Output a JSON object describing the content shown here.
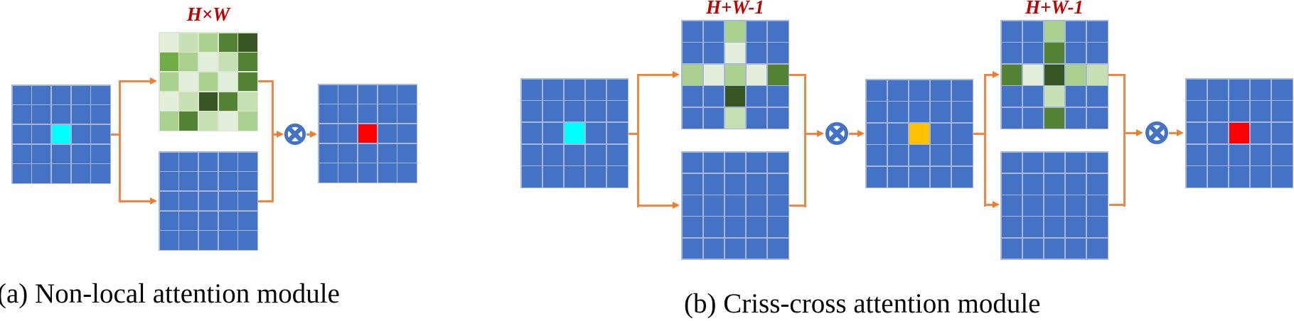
{
  "figure": {
    "panel_a": {
      "caption": "(a) Non-local attention module",
      "attention_map_label": "H×W"
    },
    "panel_b": {
      "caption": "(b) Criss-cross attention module",
      "attention_map_label_1": "H+W-1",
      "attention_map_label_2": "H+W-1"
    }
  },
  "colors": {
    "feature_map_blue": "#4472C4",
    "grid_line_blue": "#A6B7DB",
    "grid_line_green": "#DCE6D0",
    "query_position_cyan": "#00FFFF",
    "output_position_red": "#FF0000",
    "intermediate_position_orange": "#FFC000",
    "arrow_orange": "#ED8746",
    "arrowhead_orange": "#ED7D31",
    "label_dark_red": "#C00000",
    "multiply_operator_blue": "#4472C4",
    "green_scale_low_to_high": [
      "#E2EFDA",
      "#C6E0B4",
      "#A9D08E",
      "#70AD47",
      "#548235",
      "#375623"
    ]
  },
  "icons": {
    "multiply_operator": "circled-times ⊗"
  },
  "palette": {
    "B": "#4472C4",
    "C": "#00FFFF",
    "R": "#FF0000",
    "O": "#FFC000",
    "g0": "#E2EFDA",
    "g1": "#C6E0B4",
    "g2": "#A9D08E",
    "g3": "#70AD47",
    "g4": "#548235",
    "g5": "#375623"
  },
  "grids": {
    "a_input": [
      [
        "B",
        "B",
        "B",
        "B",
        "B"
      ],
      [
        "B",
        "B",
        "B",
        "B",
        "B"
      ],
      [
        "B",
        "B",
        "C",
        "B",
        "B"
      ],
      [
        "B",
        "B",
        "B",
        "B",
        "B"
      ],
      [
        "B",
        "B",
        "B",
        "B",
        "B"
      ]
    ],
    "a_attention": [
      [
        "g0",
        "g1",
        "g2",
        "g4",
        "g5"
      ],
      [
        "g3",
        "g2",
        "g0",
        "g1",
        "g4"
      ],
      [
        "g2",
        "g0",
        "g2",
        "g0",
        "g4"
      ],
      [
        "g0",
        "g1",
        "g5",
        "g4",
        "g1"
      ],
      [
        "g2",
        "g4",
        "g1",
        "g0",
        "g2"
      ]
    ],
    "a_value": [
      [
        "B",
        "B",
        "B",
        "B",
        "B"
      ],
      [
        "B",
        "B",
        "B",
        "B",
        "B"
      ],
      [
        "B",
        "B",
        "B",
        "B",
        "B"
      ],
      [
        "B",
        "B",
        "B",
        "B",
        "B"
      ],
      [
        "B",
        "B",
        "B",
        "B",
        "B"
      ]
    ],
    "a_output": [
      [
        "B",
        "B",
        "B",
        "B",
        "B"
      ],
      [
        "B",
        "B",
        "B",
        "B",
        "B"
      ],
      [
        "B",
        "B",
        "R",
        "B",
        "B"
      ],
      [
        "B",
        "B",
        "B",
        "B",
        "B"
      ],
      [
        "B",
        "B",
        "B",
        "B",
        "B"
      ]
    ],
    "b_input": [
      [
        "B",
        "B",
        "B",
        "B",
        "B"
      ],
      [
        "B",
        "B",
        "B",
        "B",
        "B"
      ],
      [
        "B",
        "B",
        "C",
        "B",
        "B"
      ],
      [
        "B",
        "B",
        "B",
        "B",
        "B"
      ],
      [
        "B",
        "B",
        "B",
        "B",
        "B"
      ]
    ],
    "b_attention_1": [
      [
        "B",
        "B",
        "g2",
        "B",
        "B"
      ],
      [
        "B",
        "B",
        "g0",
        "B",
        "B"
      ],
      [
        "g2",
        "g0",
        "g2",
        "g0",
        "g4"
      ],
      [
        "B",
        "B",
        "g5",
        "B",
        "B"
      ],
      [
        "B",
        "B",
        "g1",
        "B",
        "B"
      ]
    ],
    "b_value_1": [
      [
        "B",
        "B",
        "B",
        "B",
        "B"
      ],
      [
        "B",
        "B",
        "B",
        "B",
        "B"
      ],
      [
        "B",
        "B",
        "B",
        "B",
        "B"
      ],
      [
        "B",
        "B",
        "B",
        "B",
        "B"
      ],
      [
        "B",
        "B",
        "B",
        "B",
        "B"
      ]
    ],
    "b_intermediate": [
      [
        "B",
        "B",
        "B",
        "B",
        "B"
      ],
      [
        "B",
        "B",
        "B",
        "B",
        "B"
      ],
      [
        "B",
        "B",
        "O",
        "B",
        "B"
      ],
      [
        "B",
        "B",
        "B",
        "B",
        "B"
      ],
      [
        "B",
        "B",
        "B",
        "B",
        "B"
      ]
    ],
    "b_attention_2": [
      [
        "B",
        "B",
        "g2",
        "B",
        "B"
      ],
      [
        "B",
        "B",
        "g4",
        "B",
        "B"
      ],
      [
        "g4",
        "g0",
        "g5",
        "g2",
        "g1"
      ],
      [
        "B",
        "B",
        "g1",
        "B",
        "B"
      ],
      [
        "B",
        "B",
        "g4",
        "B",
        "B"
      ]
    ],
    "b_value_2": [
      [
        "B",
        "B",
        "B",
        "B",
        "B"
      ],
      [
        "B",
        "B",
        "B",
        "B",
        "B"
      ],
      [
        "B",
        "B",
        "B",
        "B",
        "B"
      ],
      [
        "B",
        "B",
        "B",
        "B",
        "B"
      ],
      [
        "B",
        "B",
        "B",
        "B",
        "B"
      ]
    ],
    "b_output": [
      [
        "B",
        "B",
        "B",
        "B",
        "B"
      ],
      [
        "B",
        "B",
        "B",
        "B",
        "B"
      ],
      [
        "B",
        "B",
        "R",
        "B",
        "B"
      ],
      [
        "B",
        "B",
        "B",
        "B",
        "B"
      ],
      [
        "B",
        "B",
        "B",
        "B",
        "B"
      ]
    ]
  }
}
